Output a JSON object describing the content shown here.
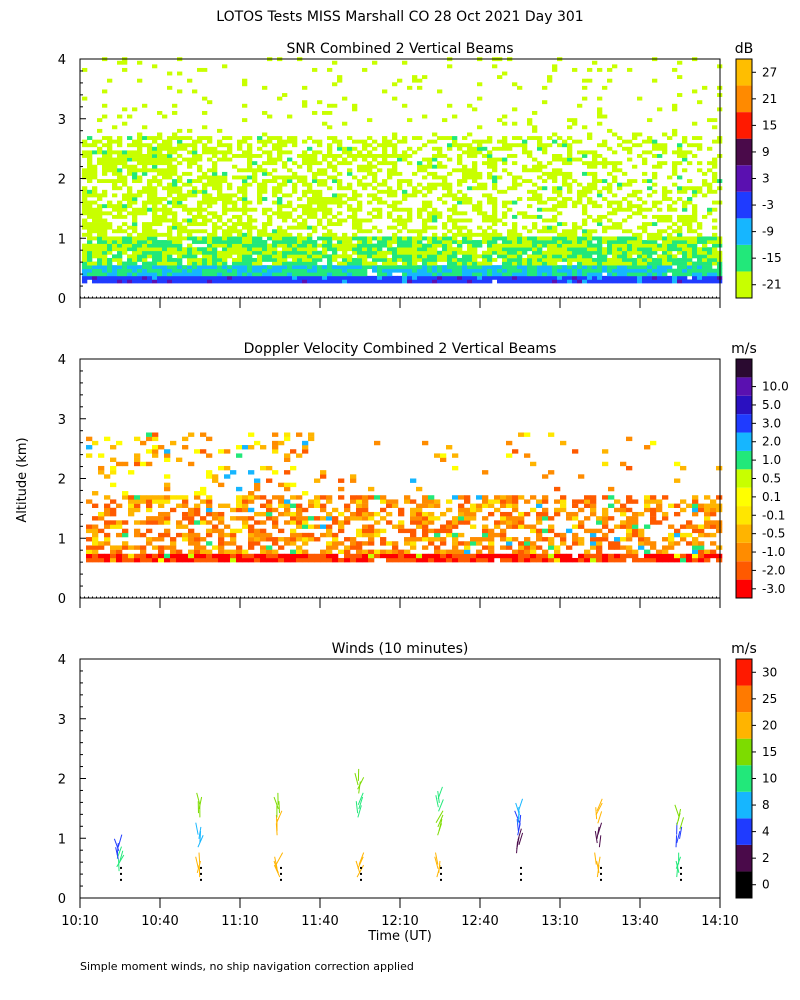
{
  "page_title": "LOTOS Tests MISS Marshall CO  28 Oct 2021 Day 301",
  "footnote": "Simple moment winds, no ship navigation correction applied",
  "colors": {
    "snr_scale": [
      "#c8ff00",
      "#22e87a",
      "#16b6ff",
      "#1f3bff",
      "#5a10b0",
      "#4a0a4a",
      "#ff1a00",
      "#ff8a00",
      "#ffbe00"
    ],
    "vel_scale": [
      "#ff0000",
      "#ff5a00",
      "#ff8c00",
      "#ffb400",
      "#ffe600",
      "#ffff00",
      "#c8ff00",
      "#22e87a",
      "#16b6ff",
      "#1f3bff",
      "#2a10c0",
      "#5a10b0",
      "#2a0a30"
    ],
    "wind_scale": [
      "#000000",
      "#4a0a4a",
      "#1f3bff",
      "#16b6ff",
      "#22e87a",
      "#7ddc00",
      "#ffb400",
      "#ff7a00",
      "#ff1a00"
    ]
  },
  "chart_data": [
    {
      "type": "heatmap",
      "title": "SNR Combined 2 Vertical Beams",
      "xlabel": "",
      "ylabel": "",
      "xlim": [
        "10:10",
        "14:10"
      ],
      "ylim": [
        0,
        4
      ],
      "yticks": [
        "0",
        "1",
        "2",
        "3",
        "4"
      ],
      "colorbar_unit": "dB",
      "colorbar_ticks": [
        "-21",
        "-15",
        "-9",
        "-3",
        "3",
        "9",
        "15",
        "21",
        "27"
      ],
      "colorbar_values": [
        -21,
        -15,
        -9,
        -3,
        3,
        9,
        15,
        21,
        27
      ],
      "profile_by_altitude_km": [
        {
          "alt_range": [
            0.25,
            0.32
          ],
          "snr_db": 0
        },
        {
          "alt_range": [
            0.32,
            0.55
          ],
          "snr_db": -9
        },
        {
          "alt_range": [
            0.55,
            1.0
          ],
          "snr_db": -15
        },
        {
          "alt_range": [
            1.0,
            2.7
          ],
          "snr_db": -18
        },
        {
          "alt_range": [
            2.7,
            4.0
          ],
          "snr_db": -21
        }
      ]
    },
    {
      "type": "heatmap",
      "title": "Doppler Velocity Combined 2 Vertical Beams",
      "ylabel": "Altitude (km)",
      "xlim": [
        "10:10",
        "14:10"
      ],
      "ylim": [
        0,
        4
      ],
      "yticks": [
        "0",
        "1",
        "2",
        "3",
        "4"
      ],
      "colorbar_unit": "m/s",
      "colorbar_ticks": [
        "-3.0",
        "-2.0",
        "-1.0",
        "-0.5",
        "-0.1",
        "0.1",
        "0.5",
        "1.0",
        "2.0",
        "3.0",
        "5.0",
        "10.0"
      ],
      "colorbar_values": [
        -3.0,
        -2.0,
        -1.0,
        -0.5,
        -0.1,
        0.1,
        0.5,
        1.0,
        2.0,
        3.0,
        5.0,
        10.0
      ],
      "profile_by_altitude_km": [
        {
          "alt_range": [
            0.6,
            0.7
          ],
          "velocity_ms": -2.0
        },
        {
          "alt_range": [
            0.7,
            1.7
          ],
          "velocity_ms": -0.7
        },
        {
          "alt_range": [
            1.7,
            2.7
          ],
          "velocity_ms": -0.3
        }
      ]
    },
    {
      "type": "scatter",
      "title": "Winds (10 minutes)",
      "xlabel": "Time (UT)",
      "xticks": [
        "10:10",
        "10:40",
        "11:10",
        "11:40",
        "12:10",
        "12:40",
        "13:10",
        "13:40",
        "14:10"
      ],
      "xlim_minutes_from_1010": [
        0,
        240
      ],
      "ylim": [
        0,
        4
      ],
      "yticks": [
        "0",
        "1",
        "2",
        "3",
        "4"
      ],
      "colorbar_unit": "m/s",
      "colorbar_ticks": [
        "0",
        "2",
        "4",
        "8",
        "10",
        "15",
        "20",
        "25",
        "30"
      ],
      "colorbar_values": [
        0,
        2,
        4,
        8,
        10,
        15,
        20,
        25,
        30
      ],
      "wind_profiles": [
        {
          "time_min": 15,
          "altitudes_km": [
            0.6,
            0.8
          ],
          "speed_ms": [
            12,
            4
          ]
        },
        {
          "time_min": 45,
          "altitudes_km": [
            0.5,
            1.0,
            1.5
          ],
          "speed_ms": [
            20,
            8,
            17
          ]
        },
        {
          "time_min": 75,
          "altitudes_km": [
            0.5,
            1.2,
            1.5
          ],
          "speed_ms": [
            20,
            24,
            17
          ]
        },
        {
          "time_min": 105,
          "altitudes_km": [
            0.5,
            1.5,
            1.9
          ],
          "speed_ms": [
            20,
            11,
            17
          ]
        },
        {
          "time_min": 135,
          "altitudes_km": [
            0.5,
            1.2,
            1.6
          ],
          "speed_ms": [
            20,
            15,
            12
          ]
        },
        {
          "time_min": 165,
          "altitudes_km": [
            0.9,
            1.2,
            1.4
          ],
          "speed_ms": [
            3,
            4,
            8
          ]
        },
        {
          "time_min": 195,
          "altitudes_km": [
            0.5,
            1.0,
            1.4
          ],
          "speed_ms": [
            20,
            3,
            20
          ]
        },
        {
          "time_min": 225,
          "altitudes_km": [
            0.5,
            1.0,
            1.3
          ],
          "speed_ms": [
            12,
            4,
            17
          ]
        }
      ]
    }
  ]
}
